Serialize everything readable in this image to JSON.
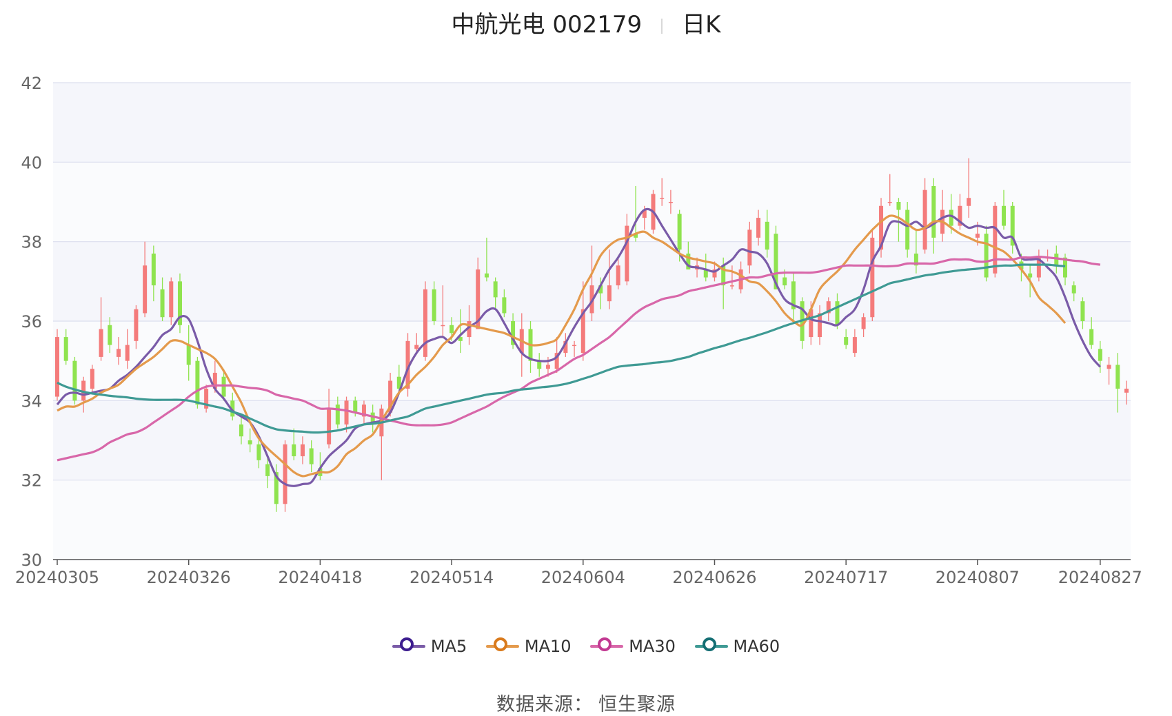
{
  "header": {
    "stock": "中航光电 002179",
    "period": "日K"
  },
  "source": {
    "label": "数据来源：",
    "value": "恒生聚源"
  },
  "colors": {
    "up": "#f47b7b",
    "down": "#8fe34f",
    "ma5": "#7a5ba8",
    "ma10": "#e49a4c",
    "ma30": "#d867a9",
    "ma60": "#3f9a94",
    "legend_ma5": "#3d1d8f",
    "legend_ma10": "#d97a1c",
    "legend_ma30": "#c23a92",
    "legend_ma60": "#146e73"
  },
  "chart_data": {
    "type": "candlestick",
    "ylim": [
      30,
      42
    ],
    "yticks": [
      "42",
      "40",
      "38",
      "36",
      "34",
      "32",
      "30"
    ],
    "xtick_labels": [
      {
        "i": 0,
        "label": "20240305"
      },
      {
        "i": 15,
        "label": "20240326"
      },
      {
        "i": 30,
        "label": "20240418"
      },
      {
        "i": 45,
        "label": "20240514"
      },
      {
        "i": 60,
        "label": "20240604"
      },
      {
        "i": 75,
        "label": "20240626"
      },
      {
        "i": 90,
        "label": "20240717"
      },
      {
        "i": 105,
        "label": "20240807"
      },
      {
        "i": 119,
        "label": "20240827"
      }
    ],
    "legend": [
      "MA5",
      "MA10",
      "MA30",
      "MA60"
    ],
    "candles": [
      [
        34.1,
        35.6,
        35.8,
        34.0
      ],
      [
        35.6,
        35.0,
        35.8,
        34.9
      ],
      [
        35.0,
        34.0,
        35.1,
        33.9
      ],
      [
        34.0,
        34.5,
        34.6,
        33.7
      ],
      [
        34.3,
        34.8,
        34.9,
        34.2
      ],
      [
        35.1,
        35.8,
        36.6,
        35.0
      ],
      [
        35.9,
        35.4,
        36.1,
        35.2
      ],
      [
        35.1,
        35.3,
        35.6,
        34.9
      ],
      [
        35.0,
        35.4,
        35.8,
        34.8
      ],
      [
        35.5,
        36.3,
        36.4,
        35.3
      ],
      [
        36.2,
        37.4,
        38.0,
        36.1
      ],
      [
        37.7,
        36.9,
        37.9,
        36.5
      ],
      [
        36.8,
        36.1,
        37.1,
        36.0
      ],
      [
        36.1,
        37.0,
        37.1,
        35.9
      ],
      [
        37.0,
        35.9,
        37.2,
        35.7
      ],
      [
        35.4,
        34.9,
        35.9,
        34.5
      ],
      [
        35.0,
        33.9,
        35.1,
        33.8
      ],
      [
        33.8,
        34.3,
        34.4,
        33.7
      ],
      [
        34.3,
        34.7,
        35.0,
        34.2
      ],
      [
        34.6,
        34.1,
        34.8,
        34.0
      ],
      [
        34.0,
        33.6,
        34.2,
        33.5
      ],
      [
        33.4,
        33.1,
        33.6,
        32.9
      ],
      [
        33.0,
        32.9,
        33.3,
        32.7
      ],
      [
        32.9,
        32.5,
        33.0,
        32.3
      ],
      [
        32.4,
        32.1,
        32.6,
        31.8
      ],
      [
        32.2,
        31.4,
        32.4,
        31.2
      ],
      [
        31.4,
        32.9,
        33.0,
        31.2
      ],
      [
        32.9,
        32.6,
        33.3,
        32.5
      ],
      [
        32.6,
        32.9,
        33.1,
        32.4
      ],
      [
        32.8,
        32.4,
        33.0,
        32.2
      ],
      [
        32.3,
        32.1,
        32.7,
        32.0
      ],
      [
        32.9,
        33.8,
        34.3,
        32.8
      ],
      [
        33.9,
        33.4,
        34.1,
        33.3
      ],
      [
        33.4,
        34.0,
        34.1,
        33.2
      ],
      [
        34.0,
        33.7,
        34.1,
        33.6
      ],
      [
        33.6,
        33.9,
        34.0,
        33.4
      ],
      [
        33.7,
        33.4,
        33.9,
        33.2
      ],
      [
        33.1,
        33.8,
        33.9,
        32.0
      ],
      [
        33.7,
        34.5,
        34.7,
        33.6
      ],
      [
        34.6,
        34.3,
        34.9,
        34.2
      ],
      [
        34.3,
        35.5,
        35.7,
        34.1
      ],
      [
        35.3,
        35.4,
        35.7,
        35.2
      ],
      [
        35.1,
        36.8,
        37.0,
        35.0
      ],
      [
        36.8,
        36.0,
        37.0,
        35.9
      ],
      [
        35.9,
        35.9,
        36.9,
        35.6
      ],
      [
        35.9,
        35.7,
        36.1,
        35.5
      ],
      [
        35.6,
        35.5,
        36.3,
        35.2
      ],
      [
        35.6,
        36.0,
        36.4,
        35.4
      ],
      [
        35.8,
        37.3,
        37.6,
        35.8
      ],
      [
        37.2,
        37.1,
        38.1,
        37.0
      ],
      [
        37.0,
        36.6,
        37.1,
        36.3
      ],
      [
        36.6,
        36.2,
        36.8,
        36.1
      ],
      [
        36.0,
        35.4,
        36.2,
        35.3
      ],
      [
        35.2,
        35.8,
        36.2,
        34.6
      ],
      [
        35.8,
        35.0,
        36.0,
        34.7
      ],
      [
        35.0,
        34.8,
        35.2,
        34.6
      ],
      [
        34.8,
        34.9,
        35.1,
        34.6
      ],
      [
        34.8,
        35.2,
        35.6,
        34.7
      ],
      [
        35.2,
        35.5,
        35.7,
        35.1
      ],
      [
        35.4,
        35.4,
        35.5,
        35.1
      ],
      [
        35.2,
        36.3,
        37.0,
        35.0
      ],
      [
        36.2,
        36.9,
        37.9,
        36.0
      ],
      [
        36.9,
        36.7,
        37.1,
        36.3
      ],
      [
        36.5,
        36.9,
        37.8,
        36.3
      ],
      [
        36.9,
        37.4,
        37.6,
        36.8
      ],
      [
        37.0,
        38.4,
        38.7,
        36.9
      ],
      [
        38.2,
        38.1,
        39.4,
        38.0
      ],
      [
        38.6,
        38.8,
        38.9,
        38.3
      ],
      [
        38.3,
        39.2,
        39.3,
        38.2
      ],
      [
        39.1,
        39.1,
        39.6,
        38.9
      ],
      [
        39.0,
        39.0,
        39.3,
        38.7
      ],
      [
        38.7,
        37.8,
        38.8,
        37.5
      ],
      [
        37.7,
        37.3,
        38.0,
        37.3
      ],
      [
        37.3,
        37.4,
        37.6,
        37.1
      ],
      [
        37.3,
        37.1,
        37.7,
        37.0
      ],
      [
        37.1,
        37.3,
        37.5,
        37.0
      ],
      [
        37.4,
        36.9,
        37.6,
        36.3
      ],
      [
        36.9,
        36.9,
        37.4,
        36.8
      ],
      [
        36.8,
        37.3,
        37.5,
        36.7
      ],
      [
        37.4,
        38.3,
        38.5,
        37.2
      ],
      [
        38.1,
        38.6,
        38.8,
        37.9
      ],
      [
        38.5,
        37.8,
        38.8,
        37.6
      ],
      [
        38.2,
        36.8,
        38.4,
        36.8
      ],
      [
        37.1,
        36.9,
        37.3,
        36.8
      ],
      [
        37.0,
        36.3,
        37.2,
        36.0
      ],
      [
        36.5,
        35.5,
        36.6,
        35.3
      ],
      [
        35.6,
        36.3,
        36.5,
        35.4
      ],
      [
        35.6,
        36.2,
        36.4,
        35.4
      ],
      [
        36.2,
        36.5,
        36.6,
        36.0
      ],
      [
        36.5,
        35.9,
        36.7,
        35.8
      ],
      [
        35.6,
        35.4,
        35.8,
        35.3
      ],
      [
        35.2,
        35.6,
        35.8,
        35.1
      ],
      [
        35.8,
        36.1,
        36.2,
        35.6
      ],
      [
        36.1,
        38.1,
        38.3,
        36.0
      ],
      [
        37.8,
        38.9,
        39.1,
        37.6
      ],
      [
        39.0,
        39.0,
        39.7,
        38.9
      ],
      [
        39.0,
        38.8,
        39.1,
        38.0
      ],
      [
        38.8,
        37.8,
        39.0,
        37.6
      ],
      [
        37.7,
        37.4,
        38.3,
        37.2
      ],
      [
        37.8,
        39.3,
        39.6,
        37.7
      ],
      [
        39.4,
        38.1,
        39.6,
        37.7
      ],
      [
        38.2,
        38.8,
        39.3,
        38.0
      ],
      [
        38.8,
        38.4,
        39.2,
        38.2
      ],
      [
        38.4,
        38.9,
        39.2,
        38.3
      ],
      [
        38.9,
        39.1,
        40.1,
        38.6
      ],
      [
        38.1,
        38.2,
        38.5,
        37.9
      ],
      [
        38.2,
        37.1,
        38.4,
        37.0
      ],
      [
        37.2,
        38.9,
        39.0,
        37.1
      ],
      [
        38.9,
        38.4,
        39.3,
        38.3
      ],
      [
        38.9,
        37.9,
        39.0,
        37.7
      ],
      [
        37.5,
        37.3,
        37.7,
        37.0
      ],
      [
        37.2,
        37.1,
        37.4,
        36.6
      ],
      [
        37.1,
        37.6,
        37.8,
        37.0
      ],
      [
        37.6,
        37.6,
        37.8,
        37.5
      ],
      [
        37.7,
        37.4,
        37.9,
        37.2
      ],
      [
        37.6,
        37.1,
        37.7,
        36.9
      ],
      [
        36.9,
        36.7,
        37.0,
        36.5
      ],
      [
        36.5,
        36.0,
        36.6,
        35.8
      ],
      [
        35.8,
        35.4,
        36.1,
        35.3
      ],
      [
        35.3,
        35.0,
        35.5,
        34.7
      ],
      [
        34.8,
        34.9,
        35.1,
        34.4
      ],
      [
        34.9,
        34.3,
        35.2,
        33.7
      ],
      [
        34.2,
        34.3,
        34.5,
        33.9
      ]
    ],
    "series": [
      {
        "name": "MA5",
        "color": "#7a5ba8",
        "values": [
          33.9,
          34.15,
          34.2,
          34.15,
          34.2,
          34.25,
          34.3,
          34.5,
          34.65,
          34.85,
          35.1,
          35.35,
          35.65,
          35.8,
          36.1,
          36.05,
          35.5,
          34.8,
          34.3,
          34.05,
          33.75,
          33.6,
          33.45,
          33.1,
          32.6,
          32.1,
          31.9,
          31.85,
          31.9,
          31.95,
          32.3,
          32.6,
          32.8,
          33.0,
          33.3,
          33.4,
          33.45,
          33.5,
          33.7,
          34.2,
          34.8,
          35.2,
          35.45,
          35.55,
          35.6,
          35.45,
          35.65,
          35.85,
          36.0,
          36.25,
          36.3,
          35.95,
          35.55,
          35.2,
          35.05,
          35.0,
          35.0,
          35.1,
          35.45,
          35.85,
          36.2,
          36.5,
          36.9,
          37.3,
          37.6,
          38.0,
          38.5,
          38.8,
          38.75,
          38.4,
          38.05,
          37.7,
          37.4,
          37.35,
          37.3,
          37.25,
          37.4,
          37.55,
          37.8,
          37.75,
          37.7,
          37.45,
          36.95,
          36.55,
          36.4,
          36.3,
          36.05,
          36.0,
          35.95,
          35.9,
          36.1,
          36.3,
          36.8,
          37.5,
          37.9,
          38.45,
          38.5,
          38.4,
          38.5,
          38.35,
          38.45,
          38.6,
          38.65,
          38.5,
          38.35,
          38.4,
          38.35,
          38.35,
          38.1,
          38.1,
          37.6,
          37.55,
          37.55,
          37.35,
          37.1,
          36.6,
          36.0,
          35.5,
          35.1,
          34.85
        ]
      },
      {
        "name": "MA10",
        "color": "#e49a4c",
        "values": [
          33.75,
          33.85,
          33.85,
          33.95,
          34.05,
          34.2,
          34.3,
          34.4,
          34.6,
          34.8,
          34.95,
          35.1,
          35.3,
          35.5,
          35.5,
          35.4,
          35.3,
          35.2,
          35.05,
          34.75,
          34.35,
          33.95,
          33.45,
          33.05,
          32.8,
          32.6,
          32.4,
          32.2,
          32.1,
          32.15,
          32.2,
          32.2,
          32.35,
          32.65,
          32.8,
          33.0,
          33.15,
          33.5,
          33.85,
          34.2,
          34.4,
          34.65,
          34.85,
          35.1,
          35.4,
          35.6,
          35.9,
          35.9,
          35.85,
          35.8,
          35.75,
          35.7,
          35.6,
          35.5,
          35.4,
          35.4,
          35.45,
          35.55,
          35.9,
          36.3,
          36.8,
          37.2,
          37.65,
          37.9,
          38.05,
          38.1,
          38.2,
          38.25,
          38.1,
          38.0,
          37.85,
          37.7,
          37.6,
          37.55,
          37.5,
          37.45,
          37.3,
          37.25,
          37.15,
          37.0,
          36.95,
          36.75,
          36.5,
          36.2,
          36.0,
          35.9,
          36.3,
          36.8,
          37.05,
          37.25,
          37.5,
          37.8,
          38.05,
          38.3,
          38.5,
          38.65,
          38.6,
          38.45,
          38.3,
          38.35,
          38.5,
          38.5,
          38.35,
          38.2,
          38.1,
          38.0,
          37.95,
          37.85,
          37.75,
          37.55,
          37.3,
          37.0,
          36.6,
          36.4,
          36.2,
          35.95
        ]
      },
      {
        "name": "MA30",
        "color": "#d867a9",
        "values": [
          32.5,
          32.55,
          32.6,
          32.65,
          32.7,
          32.8,
          32.95,
          33.05,
          33.15,
          33.2,
          33.3,
          33.45,
          33.6,
          33.75,
          33.9,
          34.1,
          34.25,
          34.35,
          34.38,
          34.38,
          34.38,
          34.35,
          34.32,
          34.3,
          34.25,
          34.15,
          34.1,
          34.05,
          34.0,
          33.9,
          33.8,
          33.8,
          33.78,
          33.75,
          33.7,
          33.65,
          33.6,
          33.55,
          33.5,
          33.45,
          33.4,
          33.38,
          33.38,
          33.38,
          33.4,
          33.45,
          33.55,
          33.65,
          33.75,
          33.85,
          33.98,
          34.1,
          34.2,
          34.3,
          34.45,
          34.55,
          34.65,
          34.75,
          34.9,
          35.05,
          35.15,
          35.3,
          35.45,
          35.6,
          35.8,
          36.0,
          36.2,
          36.35,
          36.45,
          36.55,
          36.6,
          36.65,
          36.75,
          36.8,
          36.85,
          36.9,
          36.95,
          37.0,
          37.05,
          37.1,
          37.1,
          37.15,
          37.2,
          37.22,
          37.22,
          37.22,
          37.22,
          37.25,
          37.3,
          37.35,
          37.4,
          37.4,
          37.4,
          37.4,
          37.38,
          37.38,
          37.4,
          37.45,
          37.45,
          37.45,
          37.45,
          37.5,
          37.55,
          37.55,
          37.55,
          37.5,
          37.5,
          37.55,
          37.55,
          37.55,
          37.6,
          37.6,
          37.62,
          37.6,
          37.58,
          37.55,
          37.52,
          37.5,
          37.45,
          37.42
        ]
      },
      {
        "name": "MA60",
        "color": "#3f9a94",
        "values": [
          34.45,
          34.35,
          34.28,
          34.22,
          34.18,
          34.15,
          34.12,
          34.1,
          34.08,
          34.05,
          34.03,
          34.02,
          34.02,
          34.02,
          34.02,
          34.0,
          33.95,
          33.9,
          33.85,
          33.8,
          33.72,
          33.65,
          33.55,
          33.45,
          33.35,
          33.28,
          33.25,
          33.23,
          33.22,
          33.2,
          33.2,
          33.22,
          33.25,
          33.3,
          33.35,
          33.4,
          33.42,
          33.45,
          33.5,
          33.55,
          33.6,
          33.7,
          33.8,
          33.85,
          33.9,
          33.95,
          34.0,
          34.05,
          34.1,
          34.15,
          34.18,
          34.2,
          34.25,
          34.28,
          34.3,
          34.33,
          34.35,
          34.38,
          34.42,
          34.48,
          34.55,
          34.62,
          34.7,
          34.78,
          34.85,
          34.88,
          34.9,
          34.92,
          34.95,
          34.97,
          35.0,
          35.05,
          35.1,
          35.18,
          35.25,
          35.32,
          35.38,
          35.45,
          35.52,
          35.58,
          35.65,
          35.72,
          35.8,
          35.88,
          35.95,
          36.02,
          36.08,
          36.15,
          36.25,
          36.35,
          36.45,
          36.55,
          36.65,
          36.75,
          36.85,
          36.95,
          37.0,
          37.05,
          37.1,
          37.15,
          37.18,
          37.22,
          37.25,
          37.28,
          37.3,
          37.32,
          37.35,
          37.38,
          37.4,
          37.4,
          37.42,
          37.42,
          37.42,
          37.42,
          37.4,
          37.38
        ]
      }
    ]
  }
}
